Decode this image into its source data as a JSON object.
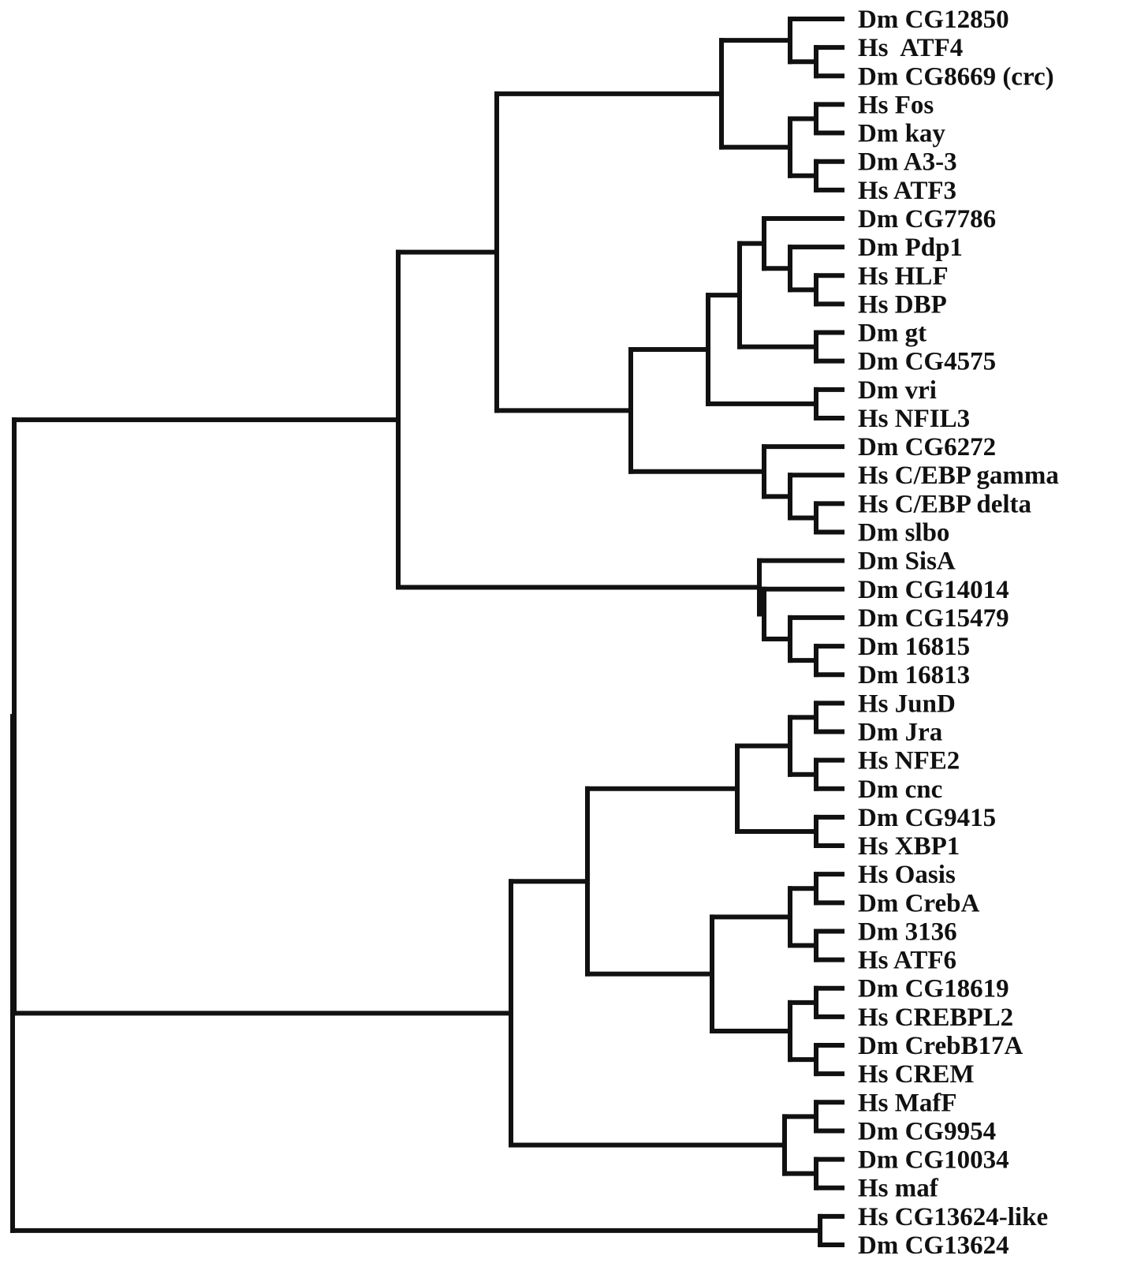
{
  "colors": {
    "line": "#111111",
    "text": "#111111",
    "background": "#ffffff"
  },
  "leaves": [
    "Dm CG12850",
    "Hs  ATF4",
    "Dm CG8669 (crc)",
    "Hs Fos",
    "Dm kay",
    "Dm A3-3",
    "Hs ATF3",
    "Dm CG7786",
    "Dm Pdp1",
    "Hs HLF",
    "Hs DBP",
    "Dm gt",
    "Dm CG4575",
    "Dm vri",
    "Hs NFIL3",
    "Dm CG6272",
    "Hs C/EBP gamma",
    "Hs C/EBP delta",
    "Dm slbo",
    "Dm SisA",
    "Dm CG14014",
    "Dm CG15479",
    "Dm 16815",
    "Dm 16813",
    "Hs JunD",
    "Dm Jra",
    "Hs NFE2",
    "Dm cnc",
    "Dm CG9415",
    "Hs XBP1",
    "Hs Oasis",
    "Dm CrebA",
    "Dm 3136",
    "Hs ATF6",
    "Dm CG18619",
    "Hs CREBPL2",
    "Dm CrebB17A",
    "Hs CREM",
    "Hs MafF",
    "Dm CG9954",
    "Dm CG10034",
    "Hs maf",
    "Hs CG13624-like",
    "Dm CG13624"
  ],
  "tree": [
    [
      [
        [
          [
            [
              "Dm CG12850",
              [
                "Hs  ATF4",
                "Dm CG8669 (crc)"
              ]
            ],
            [
              [
                "Hs Fos",
                "Dm kay"
              ],
              [
                "Dm A3-3",
                "Hs ATF3"
              ]
            ]
          ],
          [
            [
              [
                [
                  "Dm CG7786",
                  [
                    "Dm Pdp1",
                    [
                      "Hs HLF",
                      "Hs DBP"
                    ]
                  ]
                ],
                [
                  "Dm gt",
                  "Dm CG4575"
                ]
              ],
              [
                "Dm vri",
                "Hs NFIL3"
              ]
            ],
            [
              "Dm CG6272",
              [
                "Hs C/EBP gamma",
                [
                  "Hs C/EBP delta",
                  "Dm slbo"
                ]
              ]
            ]
          ]
        ],
        [
          "Dm SisA",
          [
            "Dm CG14014",
            [
              "Dm CG15479",
              [
                "Dm 16815",
                "Dm 16813"
              ]
            ]
          ]
        ]
      ],
      [
        [
          [
            [
              [
                "Hs JunD",
                "Dm Jra"
              ],
              [
                "Hs NFE2",
                "Dm cnc"
              ]
            ],
            [
              "Dm CG9415",
              "Hs XBP1"
            ]
          ],
          [
            [
              [
                "Hs Oasis",
                "Dm CrebA"
              ],
              [
                "Dm 3136",
                "Hs ATF6"
              ]
            ],
            [
              [
                "Dm CG18619",
                "Hs CREBPL2"
              ],
              [
                "Dm CrebB17A",
                "Hs CREM"
              ]
            ]
          ]
        ],
        [
          [
            "Hs MafF",
            "Dm CG9954"
          ],
          [
            "Dm CG10034",
            "Hs maf"
          ]
        ]
      ]
    ],
    [
      "Hs CG13624-like",
      "Dm CG13624"
    ]
  ]
}
